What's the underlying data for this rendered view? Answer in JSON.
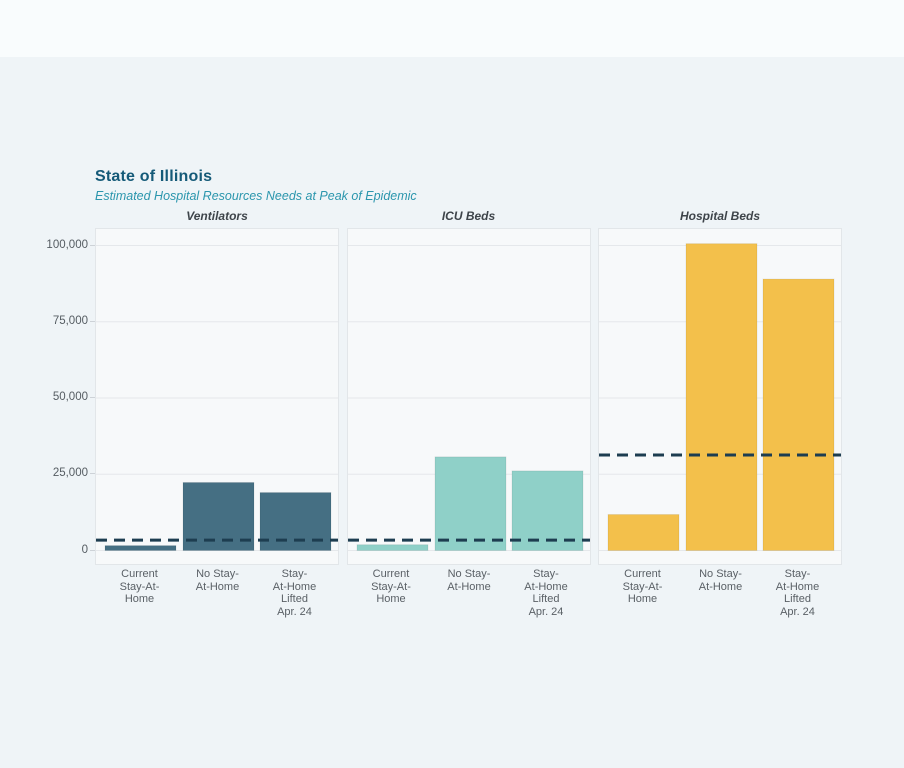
{
  "page": {
    "background_color": "#eff4f7",
    "top_band_color": "#f9fcfd",
    "panel_background_color": "#f7f9fa",
    "panel_border_color": "#e2e6e9",
    "gridline_color": "#e5e8eb"
  },
  "header": {
    "title": "State of Illinois",
    "title_color": "#155a78",
    "subtitle": "Estimated Hospital Resources Needs at Peak of Epidemic",
    "subtitle_color": "#2b96ad"
  },
  "chart_data": {
    "type": "bar",
    "title": "State of Illinois",
    "subtitle": "Estimated Hospital Resources Needs at Peak of Epidemic",
    "categories": [
      "Current Stay-At-Home",
      "No Stay-At-Home",
      "Stay-At-Home Lifted Apr. 24"
    ],
    "category_label_lines": [
      [
        "Current",
        "Stay-At-",
        "Home"
      ],
      [
        "No Stay-",
        "At-Home"
      ],
      [
        "Stay-",
        "At-Home",
        "Lifted",
        "Apr. 24"
      ]
    ],
    "panels": [
      {
        "title": "Ventilators",
        "bar_color": "#456f83",
        "values": [
          1600,
          22300,
          19000
        ],
        "capacity_line_value": 3400
      },
      {
        "title": "ICU Beds",
        "bar_color": "#8fd0c8",
        "values": [
          1900,
          30700,
          26100
        ],
        "capacity_line_value": 3400
      },
      {
        "title": "Hospital Beds",
        "bar_color": "#f3c04b",
        "values": [
          11800,
          100600,
          89000
        ],
        "capacity_line_value": 31300
      }
    ],
    "yticks": [
      0,
      25000,
      50000,
      75000,
      100000
    ],
    "ytick_labels": [
      "0",
      "25,000",
      "50,000",
      "75,000",
      "100,000"
    ],
    "ylim": [
      0,
      105500
    ],
    "grid": true,
    "legend": "none",
    "capacity_line_color": "#1d3d50",
    "capacity_line_style": "dashed"
  }
}
